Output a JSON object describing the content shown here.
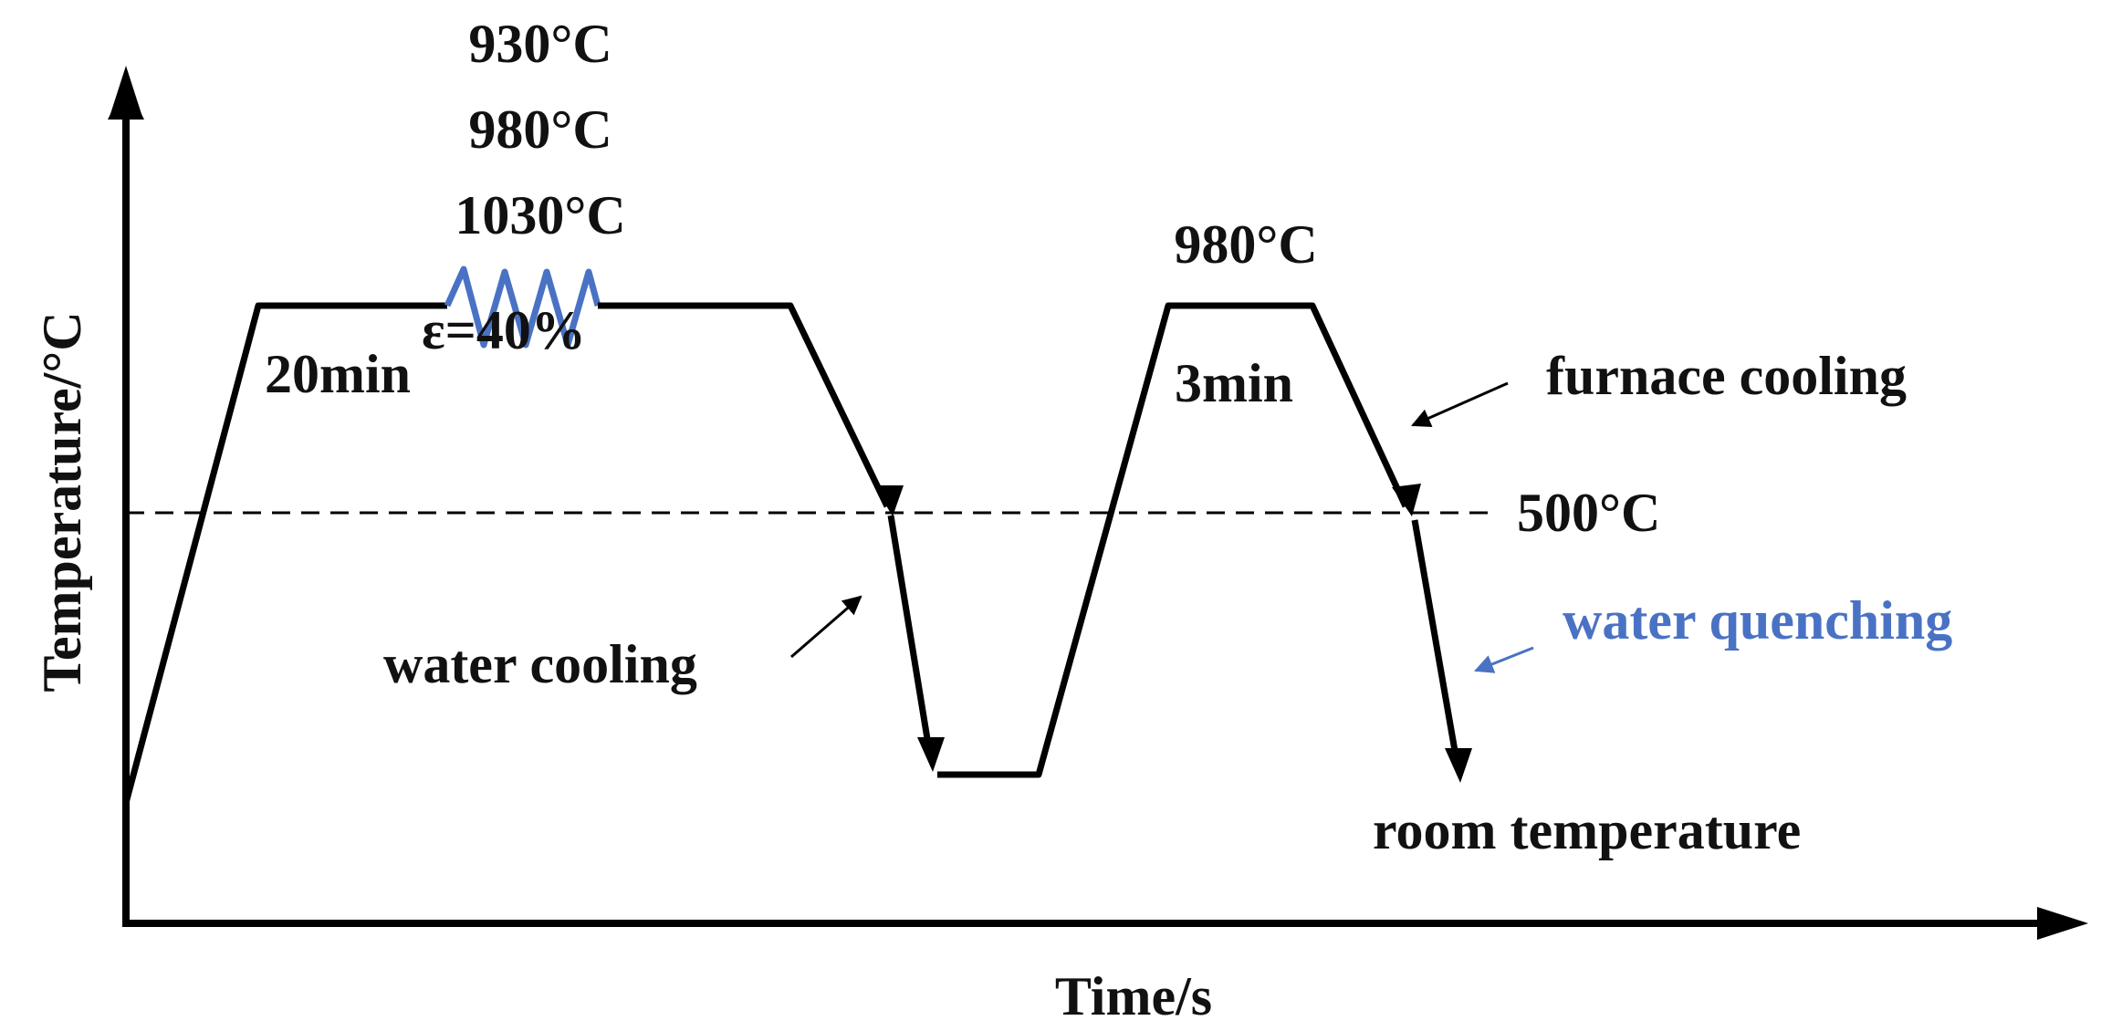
{
  "axes": {
    "y_label": "Temperature/°C",
    "x_label": "Time/s"
  },
  "stage1": {
    "temperatures": [
      "930°C",
      "980°C",
      "1030°C"
    ],
    "hold_time": "20min",
    "strain": "ε=40%"
  },
  "stage2": {
    "temperature": "980°C",
    "hold_time": "3min"
  },
  "reference_line": {
    "label": "500°C"
  },
  "annotations": {
    "furnace_cooling": "furnace cooling",
    "water_cooling": "water cooling",
    "water_quenching": "water quenching",
    "room_temperature": "room temperature"
  },
  "colors": {
    "profile_line": "#000000",
    "deformation_zigzag": "#4a72c4",
    "water_quenching_text": "#4a72c4"
  }
}
